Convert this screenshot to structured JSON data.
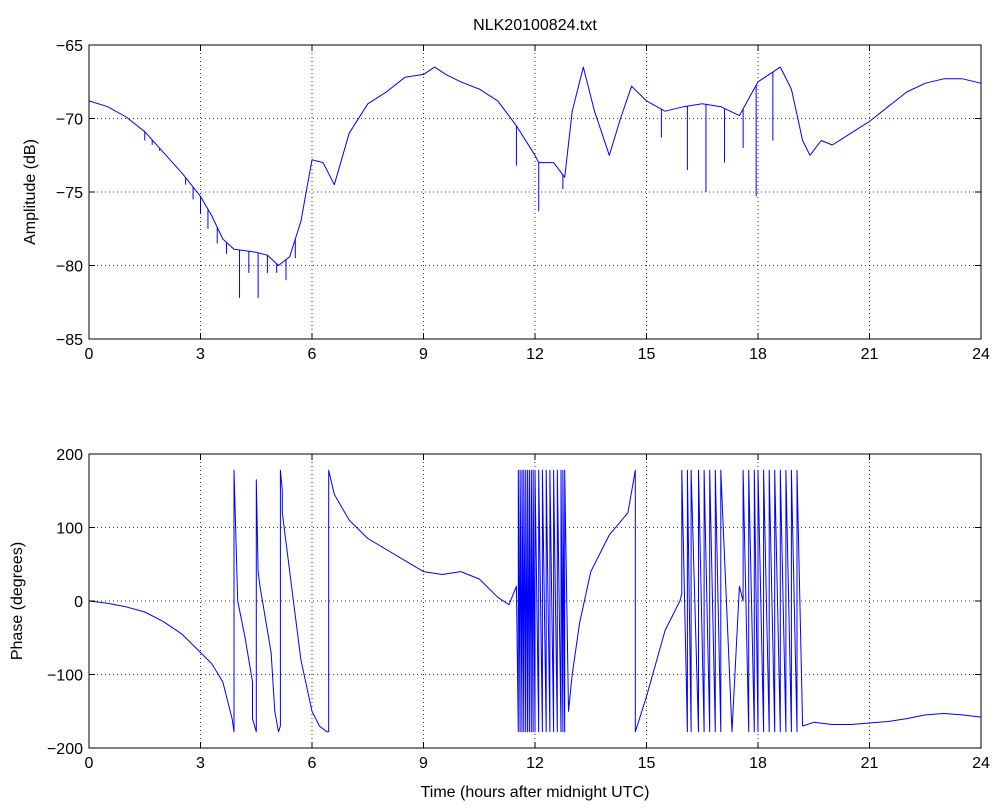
{
  "chart_data": [
    {
      "type": "line",
      "title": "NLK20100824.txt",
      "xlabel": "",
      "ylabel": "Amplitude (dB)",
      "xlim": [
        0,
        24
      ],
      "ylim": [
        -85,
        -65
      ],
      "xticks": [
        0,
        3,
        6,
        9,
        12,
        15,
        18,
        21,
        24
      ],
      "yticks": [
        -85,
        -80,
        -75,
        -70,
        -65
      ],
      "xtick_labels": [
        "0",
        "3",
        "6",
        "9",
        "12",
        "15",
        "18",
        "21",
        "24"
      ],
      "ytick_labels": [
        "−85",
        "−80",
        "−75",
        "−70",
        "−65"
      ],
      "grid": true,
      "line_color": "#0000ff",
      "series": [
        {
          "x": [
            0,
            0.5,
            1,
            1.5,
            2,
            2.5,
            3,
            3.3,
            3.6,
            3.9,
            4.2,
            4.5,
            4.8,
            5.1,
            5.4,
            5.7,
            6,
            6.3,
            6.6,
            7,
            7.5,
            8,
            8.5,
            9,
            9.3,
            9.6,
            10,
            10.5,
            11,
            11.5,
            12,
            12.1,
            12.5,
            12.8,
            13,
            13.3,
            13.6,
            14,
            14.3,
            14.6,
            15,
            15.5,
            16,
            16.5,
            17,
            17.5,
            18,
            18.3,
            18.6,
            18.9,
            19.2,
            19.4,
            19.7,
            20,
            20.5,
            21,
            21.5,
            22,
            22.5,
            23,
            23.5,
            24
          ],
          "y": [
            -68.8,
            -69.2,
            -69.9,
            -70.9,
            -72.3,
            -73.7,
            -75.3,
            -76.6,
            -78.2,
            -78.9,
            -79,
            -79.1,
            -79.3,
            -80,
            -79.4,
            -77,
            -72.8,
            -73,
            -74.5,
            -71,
            -69,
            -68.2,
            -67.2,
            -67,
            -66.5,
            -67,
            -67.5,
            -68,
            -68.8,
            -70.5,
            -72.5,
            -73,
            -73,
            -74,
            -69.5,
            -66.5,
            -69.5,
            -72.5,
            -70,
            -67.8,
            -68.8,
            -69.5,
            -69.2,
            -69,
            -69.2,
            -69.8,
            -67.5,
            -67,
            -66.5,
            -68,
            -71.5,
            -72.5,
            -71.5,
            -71.8,
            -71,
            -70.2,
            -69.2,
            -68.2,
            -67.6,
            -67.3,
            -67.3,
            -67.6
          ]
        }
      ],
      "spikes": [
        {
          "x": 1.5,
          "y": -71.5
        },
        {
          "x": 1.7,
          "y": -71.8
        },
        {
          "x": 1.9,
          "y": -72.2
        },
        {
          "x": 2.1,
          "y": -72.6
        },
        {
          "x": 2.35,
          "y": -73.3
        },
        {
          "x": 2.6,
          "y": -74.5
        },
        {
          "x": 2.8,
          "y": -75.5
        },
        {
          "x": 3.0,
          "y": -76.5
        },
        {
          "x": 3.2,
          "y": -77.5
        },
        {
          "x": 3.45,
          "y": -78.5
        },
        {
          "x": 3.7,
          "y": -79.2
        },
        {
          "x": 4.05,
          "y": -82.2
        },
        {
          "x": 4.3,
          "y": -80.5
        },
        {
          "x": 4.55,
          "y": -82.2
        },
        {
          "x": 4.8,
          "y": -80.5
        },
        {
          "x": 5.05,
          "y": -80.5
        },
        {
          "x": 5.3,
          "y": -81
        },
        {
          "x": 5.55,
          "y": -79.5
        },
        {
          "x": 11.5,
          "y": -73.2
        },
        {
          "x": 12.1,
          "y": -76.3
        },
        {
          "x": 12.75,
          "y": -74.8
        },
        {
          "x": 15.4,
          "y": -71.3
        },
        {
          "x": 16.1,
          "y": -73.5
        },
        {
          "x": 16.6,
          "y": -75
        },
        {
          "x": 17.1,
          "y": -73
        },
        {
          "x": 17.6,
          "y": -72
        },
        {
          "x": 17.95,
          "y": -75.3
        },
        {
          "x": 18.4,
          "y": -71.5
        }
      ]
    },
    {
      "type": "line",
      "title": "",
      "xlabel": "Time (hours after midnight UTC)",
      "ylabel": "Phase (degrees)",
      "xlim": [
        0,
        24
      ],
      "ylim": [
        -200,
        200
      ],
      "xticks": [
        0,
        3,
        6,
        9,
        12,
        15,
        18,
        21,
        24
      ],
      "yticks": [
        -200,
        -100,
        0,
        100,
        200
      ],
      "xtick_labels": [
        "0",
        "3",
        "6",
        "9",
        "12",
        "15",
        "18",
        "21",
        "24"
      ],
      "ytick_labels": [
        "−200",
        "−100",
        "0",
        "100",
        "200"
      ],
      "grid": true,
      "line_color": "#0000ff",
      "series": [
        {
          "x": [
            0,
            0.5,
            1,
            1.5,
            2,
            2.5,
            3,
            3.3,
            3.6,
            3.85,
            3.9,
            3.9,
            4.0,
            4.2,
            4.4,
            4.4,
            4.5,
            4.5,
            4.55,
            4.6,
            4.7,
            4.9,
            5.0,
            5.1,
            5.15,
            5.15,
            5.2,
            5.2,
            5.3,
            5.5,
            5.7,
            6.0,
            6.2,
            6.4,
            6.45,
            6.45,
            6.6,
            7,
            7.5,
            8,
            8.5,
            9,
            9.5,
            10,
            10.5,
            11,
            11.3,
            11.5,
            11.55,
            11.55,
            11.6,
            11.6,
            11.65,
            11.65,
            11.7,
            11.7,
            11.75,
            11.75,
            11.8,
            11.8,
            11.85,
            11.85,
            11.9,
            11.9,
            11.95,
            11.95,
            12.0,
            12.0,
            12.1,
            12.1,
            12.2,
            12.2,
            12.3,
            12.3,
            12.4,
            12.4,
            12.5,
            12.5,
            12.6,
            12.6,
            12.7,
            12.7,
            12.75,
            12.75,
            12.8,
            12.8,
            12.9,
            13.0,
            13.2,
            13.5,
            14,
            14.5,
            14.7,
            14.7,
            15,
            15.5,
            15.9,
            15.95,
            15.95,
            16.1,
            16.1,
            16.2,
            16.2,
            16.4,
            16.4,
            16.55,
            16.55,
            16.7,
            16.7,
            16.85,
            16.85,
            17.0,
            17.0,
            17.3,
            17.5,
            17.6,
            17.6,
            17.75,
            17.75,
            17.9,
            17.9,
            18.0,
            18.0,
            18.15,
            18.15,
            18.3,
            18.3,
            18.45,
            18.45,
            18.6,
            18.6,
            18.75,
            18.75,
            18.9,
            18.9,
            19.05,
            19.05,
            19.2,
            19.5,
            20,
            20.5,
            21,
            21.5,
            22,
            22.5,
            23,
            23.5,
            24
          ],
          "y": [
            0,
            -3,
            -8,
            -15,
            -28,
            -45,
            -70,
            -85,
            -110,
            -160,
            -178,
            178,
            0,
            -50,
            -110,
            -160,
            -178,
            165,
            40,
            20,
            -10,
            -70,
            -150,
            -178,
            -170,
            178,
            150,
            120,
            80,
            0,
            -80,
            -150,
            -170,
            -178,
            -178,
            178,
            145,
            110,
            85,
            70,
            55,
            40,
            36,
            40,
            30,
            5,
            -5,
            20,
            -178,
            178,
            -178,
            178,
            -178,
            178,
            -178,
            178,
            -178,
            178,
            -178,
            178,
            -178,
            178,
            -178,
            178,
            -178,
            178,
            -178,
            178,
            -178,
            178,
            -178,
            178,
            -178,
            178,
            -178,
            178,
            -178,
            178,
            -178,
            178,
            -178,
            178,
            -178,
            178,
            -178,
            178,
            -150,
            -100,
            -30,
            40,
            90,
            120,
            178,
            -178,
            -130,
            -40,
            0,
            10,
            178,
            -178,
            178,
            -178,
            178,
            -178,
            178,
            -178,
            178,
            -178,
            178,
            -178,
            178,
            -178,
            178,
            -178,
            20,
            0,
            178,
            -178,
            178,
            -178,
            178,
            -178,
            178,
            -178,
            178,
            -178,
            178,
            -178,
            178,
            -178,
            178,
            -178,
            178,
            -178,
            178,
            -178,
            178,
            -170,
            -165,
            -168,
            -168,
            -166,
            -164,
            -160,
            -155,
            -153,
            -155,
            -158
          ]
        }
      ]
    }
  ]
}
